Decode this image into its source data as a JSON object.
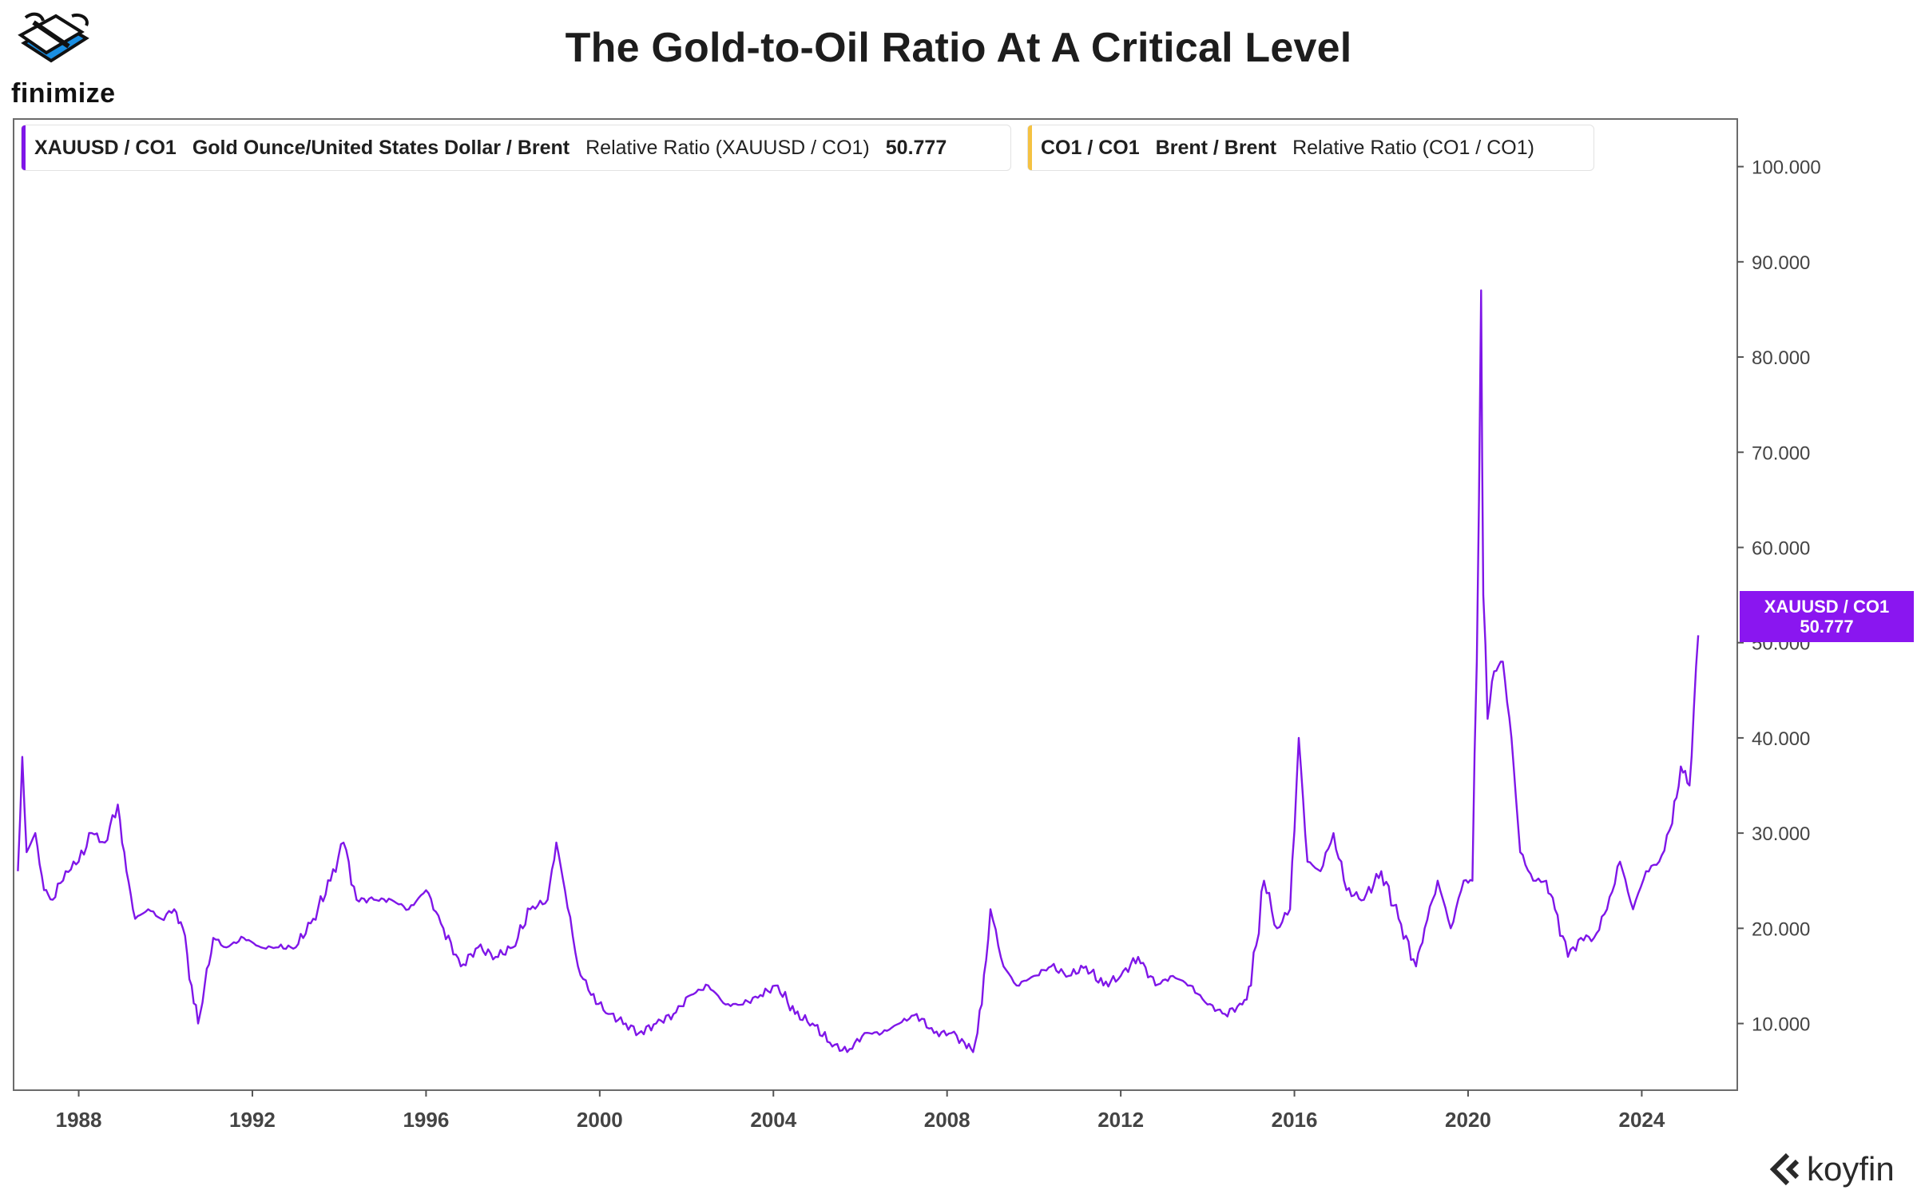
{
  "brand": {
    "name": "finimize",
    "logo_icon": "winged-shoe-logo-icon"
  },
  "title": "The Gold-to-Oil Ratio At A Critical Level",
  "legends": [
    {
      "ticker": "XAUUSD / CO1",
      "name": "Gold Ounce/United States Dollar / Brent",
      "metric": "Relative Ratio (XAUUSD / CO1)",
      "value": "50.777",
      "color": "#7f16e8"
    },
    {
      "ticker": "CO1 / CO1",
      "name": "Brent / Brent",
      "metric": "Relative Ratio (CO1 / CO1)",
      "value": "",
      "color": "#f5c242"
    }
  ],
  "price_tag": {
    "label": "XAUUSD / CO1",
    "value": "50.777",
    "color": "#8a16f0"
  },
  "watermark": {
    "name": "koyfin",
    "icon": "koyfin-chevron-icon"
  },
  "chart_data": {
    "type": "line",
    "title": "The Gold-to-Oil Ratio At A Critical Level",
    "xlabel": "",
    "ylabel": "",
    "x_ticks": [
      "1988",
      "1992",
      "1996",
      "2000",
      "2004",
      "2008",
      "2012",
      "2016",
      "2020",
      "2024"
    ],
    "y_ticks": [
      "10.000",
      "20.000",
      "30.000",
      "40.000",
      "50.000",
      "60.000",
      "70.000",
      "80.000",
      "90.000",
      "100.000"
    ],
    "xlim": [
      1986.5,
      2026.2
    ],
    "ylim": [
      3,
      105
    ],
    "y_axis_position": "right",
    "grid": false,
    "legend_position": "top-left",
    "series": [
      {
        "name": "XAUUSD / CO1",
        "color": "#7f16e8",
        "x": [
          1986.6,
          1986.7,
          1986.8,
          1987.0,
          1987.2,
          1987.4,
          1987.7,
          1988.0,
          1988.3,
          1988.6,
          1988.9,
          1989.1,
          1989.3,
          1989.6,
          1989.9,
          1990.2,
          1990.4,
          1990.6,
          1990.75,
          1990.9,
          1991.1,
          1991.4,
          1991.8,
          1992.2,
          1992.6,
          1993.0,
          1993.4,
          1993.8,
          1994.1,
          1994.4,
          1994.8,
          1995.2,
          1995.6,
          1996.0,
          1996.4,
          1996.8,
          1997.2,
          1997.6,
          1998.0,
          1998.4,
          1998.8,
          1999.0,
          1999.2,
          1999.5,
          1999.8,
          2000.2,
          2000.6,
          2000.9,
          2001.3,
          2001.7,
          2002.1,
          2002.5,
          2002.9,
          2003.3,
          2003.7,
          2004.1,
          2004.5,
          2004.9,
          2005.3,
          2005.7,
          2006.1,
          2006.5,
          2006.9,
          2007.3,
          2007.7,
          2008.1,
          2008.4,
          2008.6,
          2008.8,
          2009.0,
          2009.3,
          2009.6,
          2010.0,
          2010.4,
          2010.8,
          2011.2,
          2011.6,
          2012.0,
          2012.4,
          2012.8,
          2013.2,
          2013.6,
          2014.0,
          2014.4,
          2014.8,
          2015.0,
          2015.3,
          2015.6,
          2015.9,
          2016.1,
          2016.3,
          2016.6,
          2016.9,
          2017.2,
          2017.6,
          2018.0,
          2018.4,
          2018.8,
          2019.0,
          2019.3,
          2019.6,
          2019.9,
          2020.1,
          2020.2,
          2020.3,
          2020.35,
          2020.45,
          2020.6,
          2020.8,
          2021.0,
          2021.2,
          2021.5,
          2021.8,
          2022.0,
          2022.3,
          2022.6,
          2022.9,
          2023.2,
          2023.5,
          2023.8,
          2024.1,
          2024.4,
          2024.7,
          2024.9,
          2025.1,
          2025.2,
          2025.3
        ],
        "y": [
          26,
          38,
          28,
          30,
          24,
          23,
          26,
          27,
          30,
          29,
          33,
          26,
          21,
          22,
          21,
          22,
          20,
          14,
          10,
          14,
          19,
          18,
          19,
          18,
          18,
          18,
          21,
          25,
          29,
          23,
          23,
          23,
          22,
          24,
          20,
          16,
          18,
          17,
          18,
          22,
          23,
          29,
          24,
          16,
          13,
          11,
          10,
          9,
          10,
          11,
          13,
          14,
          12,
          12,
          13,
          14,
          11,
          10,
          8,
          7,
          9,
          9,
          10,
          11,
          9,
          9,
          8,
          7,
          12,
          22,
          16,
          14,
          15,
          16,
          15,
          16,
          14,
          15,
          17,
          14,
          15,
          14,
          12,
          11,
          12,
          14,
          25,
          20,
          22,
          40,
          27,
          26,
          30,
          24,
          23,
          26,
          21,
          16,
          20,
          25,
          20,
          25,
          25,
          48,
          87,
          55,
          42,
          47,
          48,
          40,
          28,
          25,
          25,
          22,
          17,
          19,
          19,
          22,
          27,
          22,
          26,
          27,
          31,
          37,
          35,
          43,
          50.777
        ]
      },
      {
        "name": "CO1 / CO1",
        "color": "#f5c242",
        "x": [],
        "y": []
      }
    ]
  }
}
